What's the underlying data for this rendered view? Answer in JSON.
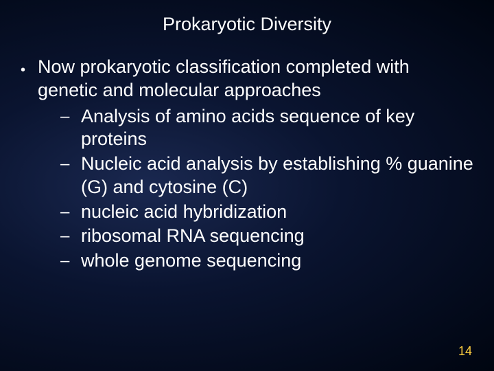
{
  "slide": {
    "title": "Prokaryotic Diversity",
    "slide_number": "14",
    "background_gradient": {
      "center": "#1a2850",
      "mid": "#0a1430",
      "edge": "#000510"
    },
    "text_color": "#ffffff",
    "number_color": "#ffd040",
    "title_fontsize": 27,
    "body_fontsize": 27,
    "number_fontsize": 18,
    "main_bullet": {
      "marker": "•",
      "text": "Now prokaryotic classification completed with genetic and molecular approaches"
    },
    "sub_bullets": [
      {
        "marker": "–",
        "text": "Analysis of amino acids sequence of key proteins"
      },
      {
        "marker": "–",
        "text": "Nucleic acid analysis by establishing % guanine (G) and cytosine (C)"
      },
      {
        "marker": "–",
        "text": "nucleic acid hybridization"
      },
      {
        "marker": "–",
        "text": "ribosomal RNA sequencing"
      },
      {
        "marker": "–",
        "text": "whole genome sequencing"
      }
    ]
  }
}
